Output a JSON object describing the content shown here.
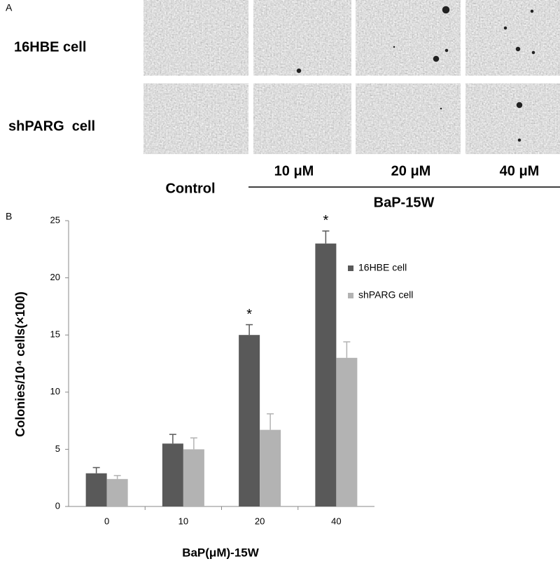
{
  "panel_a": {
    "label": "A",
    "rows": [
      "16HBE cell",
      "shPARG  cell"
    ],
    "columns": [
      "10 μM",
      "20 μM",
      "40 μM"
    ],
    "control": "Control",
    "group": "BaP-15W"
  },
  "panel_b_label": "B",
  "chart_data": {
    "type": "bar",
    "y_label": "Colonies/10⁴ cells(×100)",
    "x_label": "BaP(μM)-15W",
    "categories": [
      "0",
      "10",
      "20",
      "40"
    ],
    "series": [
      {
        "name": "16HBE cell",
        "color": "#595959",
        "values": [
          2.9,
          5.5,
          15,
          23
        ],
        "errors": [
          0.5,
          0.8,
          0.9,
          1.1
        ],
        "markers": [
          null,
          null,
          "*",
          "*"
        ]
      },
      {
        "name": "shPARG cell",
        "color": "#b3b3b3",
        "values": [
          2.4,
          5.0,
          6.7,
          13
        ],
        "errors": [
          0.3,
          1.0,
          1.4,
          1.4
        ]
      }
    ],
    "ylim": [
      0,
      25
    ],
    "yticks": [
      0,
      5,
      10,
      15,
      20,
      25
    ],
    "grid": false,
    "legend": "right"
  }
}
